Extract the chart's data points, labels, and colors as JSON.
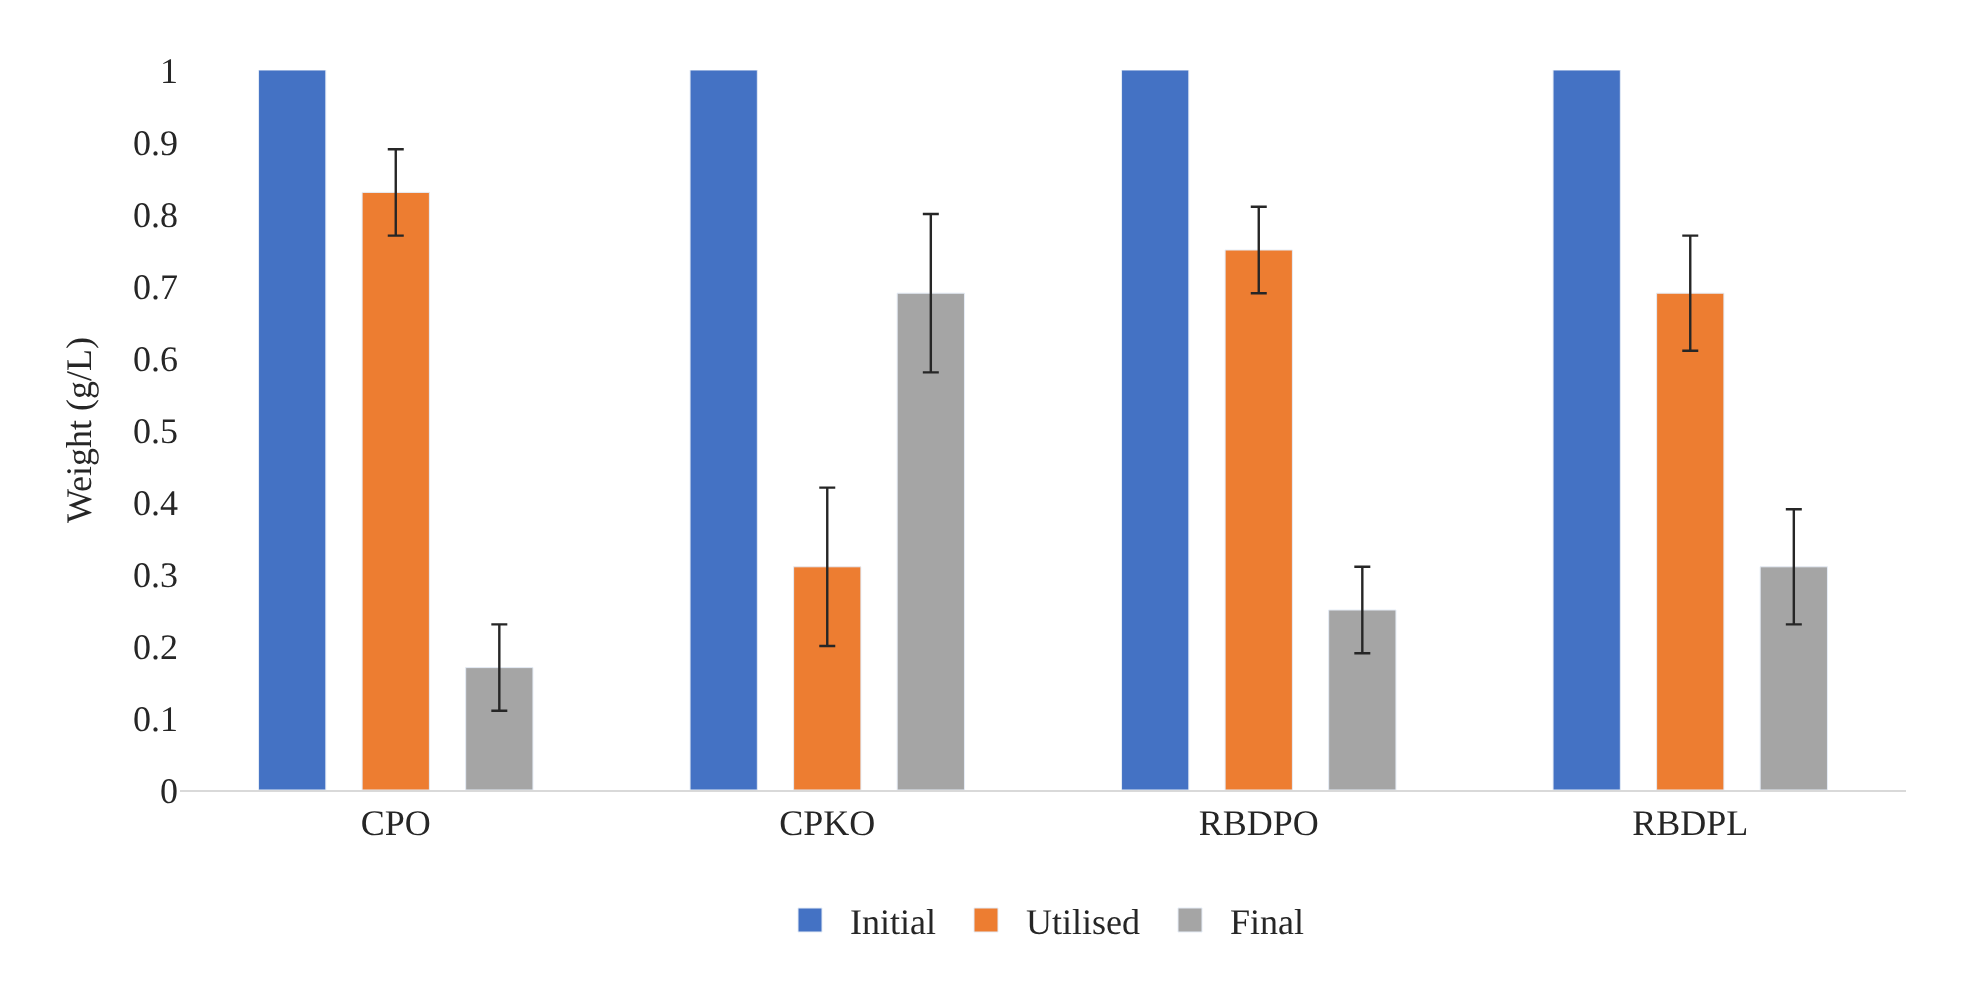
{
  "chart_data": {
    "type": "bar",
    "ylabel": "Weight (g/L)",
    "categories": [
      "CPO",
      "CPKO",
      "RBDPO",
      "RBDPL"
    ],
    "series": [
      {
        "name": "Initial",
        "color": "#4472c4",
        "values": [
          1,
          1,
          1,
          1
        ]
      },
      {
        "name": "Utilised",
        "color": "#ed7d31",
        "values": [
          0.83,
          0.31,
          0.75,
          0.69
        ],
        "errors": [
          0.06,
          0.11,
          0.06,
          0.08
        ]
      },
      {
        "name": "Final",
        "color": "#a5a5a5",
        "values": [
          0.17,
          0.69,
          0.25,
          0.31
        ],
        "errors": [
          0.06,
          0.11,
          0.06,
          0.08
        ]
      }
    ],
    "ylim": [
      0,
      1
    ],
    "yticks": [
      0,
      0.1,
      0.2,
      0.3,
      0.4,
      0.5,
      0.6,
      0.7,
      0.8,
      0.9,
      1
    ],
    "grid": false,
    "legend": "bottom"
  }
}
